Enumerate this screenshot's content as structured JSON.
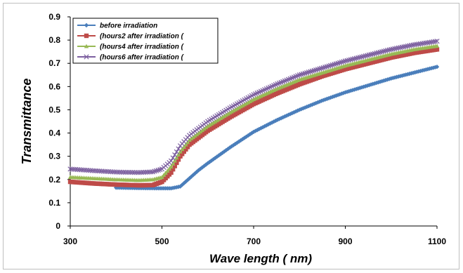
{
  "chart_data": {
    "type": "line",
    "xlabel": "Wave length ( nm)",
    "ylabel": "Transmittance",
    "xlim": [
      300,
      1100
    ],
    "ylim": [
      0,
      0.9
    ],
    "xticks": [
      "300",
      "500",
      "700",
      "900",
      "1100"
    ],
    "yticks": [
      "0",
      "0.1",
      "0.2",
      "0.3",
      "0.4",
      "0.5",
      "0.6",
      "0.7",
      "0.8",
      "0.9"
    ],
    "grid": false,
    "legend": "top-left",
    "series": [
      {
        "name": "before irradiation",
        "color": "#4a7ebb",
        "marker": "diamond",
        "x": [
          400,
          450,
          500,
          520,
          540,
          560,
          580,
          600,
          650,
          700,
          750,
          800,
          850,
          900,
          950,
          1000,
          1050,
          1100
        ],
        "y": [
          0.165,
          0.163,
          0.162,
          0.162,
          0.17,
          0.205,
          0.24,
          0.27,
          0.34,
          0.405,
          0.455,
          0.5,
          0.54,
          0.575,
          0.605,
          0.635,
          0.66,
          0.685
        ]
      },
      {
        "name": "(hours2 after irradiation (",
        "color": "#be4b48",
        "marker": "square",
        "x": [
          300,
          350,
          400,
          450,
          480,
          500,
          520,
          540,
          560,
          600,
          650,
          700,
          750,
          800,
          850,
          900,
          950,
          1000,
          1050,
          1100
        ],
        "y": [
          0.19,
          0.183,
          0.178,
          0.175,
          0.176,
          0.19,
          0.23,
          0.3,
          0.35,
          0.41,
          0.47,
          0.525,
          0.57,
          0.61,
          0.645,
          0.675,
          0.7,
          0.725,
          0.745,
          0.76
        ]
      },
      {
        "name": "(hours4 after irradiation (",
        "color": "#98b954",
        "marker": "triangle",
        "x": [
          300,
          350,
          400,
          450,
          480,
          500,
          520,
          540,
          560,
          600,
          650,
          700,
          750,
          800,
          850,
          900,
          950,
          1000,
          1050,
          1100
        ],
        "y": [
          0.21,
          0.205,
          0.2,
          0.197,
          0.2,
          0.21,
          0.255,
          0.32,
          0.37,
          0.43,
          0.49,
          0.545,
          0.59,
          0.63,
          0.66,
          0.69,
          0.715,
          0.74,
          0.76,
          0.775
        ]
      },
      {
        "name": "(hours6 after irradiation (",
        "color": "#7d60a0",
        "marker": "x",
        "x": [
          300,
          350,
          400,
          450,
          480,
          500,
          520,
          540,
          560,
          600,
          650,
          700,
          750,
          800,
          850,
          900,
          950,
          1000,
          1050,
          1100
        ],
        "y": [
          0.245,
          0.238,
          0.232,
          0.23,
          0.233,
          0.245,
          0.28,
          0.345,
          0.39,
          0.45,
          0.51,
          0.565,
          0.61,
          0.65,
          0.68,
          0.71,
          0.735,
          0.76,
          0.78,
          0.795
        ]
      }
    ]
  }
}
